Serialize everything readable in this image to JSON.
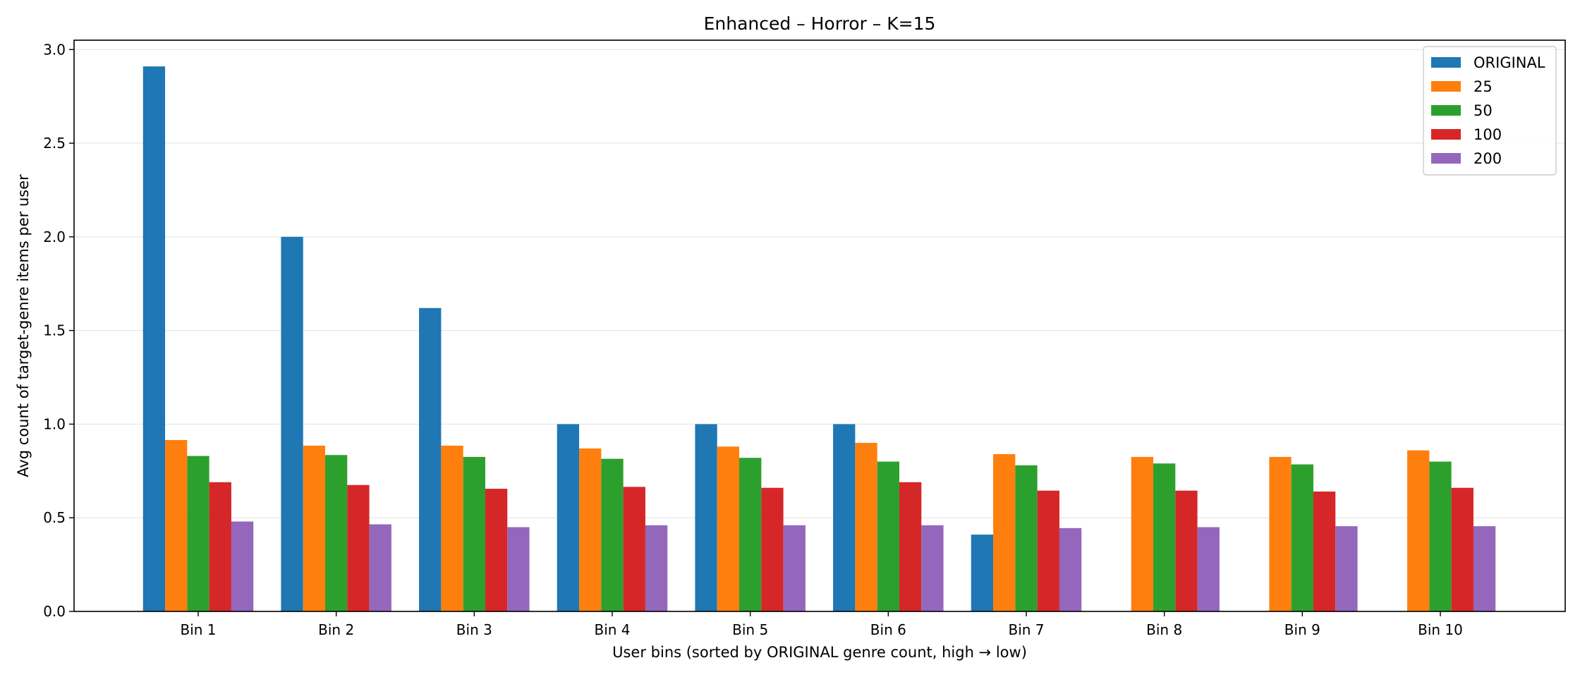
{
  "chart_data": {
    "type": "bar",
    "title": "Enhanced – Horror – K=15",
    "xlabel": "User bins (sorted by ORIGINAL genre count, high → low)",
    "ylabel": "Avg count of target-genre items per user",
    "categories": [
      "Bin 1",
      "Bin 2",
      "Bin 3",
      "Bin 4",
      "Bin 5",
      "Bin 6",
      "Bin 7",
      "Bin 8",
      "Bin 9",
      "Bin 10"
    ],
    "ylim": [
      0,
      3.05
    ],
    "yticks": [
      "0.0",
      "0.5",
      "1.0",
      "1.5",
      "2.0",
      "2.5",
      "3.0"
    ],
    "grid": "horizontal",
    "legend_position": "top-right",
    "series": [
      {
        "name": "ORIGINAL",
        "color": "#1f77b4",
        "values": [
          2.91,
          2.0,
          1.62,
          1.0,
          1.0,
          1.0,
          0.41,
          0,
          0,
          0
        ]
      },
      {
        "name": "25",
        "color": "#ff7f0e",
        "values": [
          0.915,
          0.885,
          0.885,
          0.87,
          0.88,
          0.9,
          0.84,
          0.825,
          0.825,
          0.86
        ]
      },
      {
        "name": "50",
        "color": "#2ca02c",
        "values": [
          0.83,
          0.835,
          0.825,
          0.815,
          0.82,
          0.8,
          0.78,
          0.79,
          0.785,
          0.8
        ]
      },
      {
        "name": "100",
        "color": "#d62728",
        "values": [
          0.69,
          0.675,
          0.655,
          0.665,
          0.66,
          0.69,
          0.645,
          0.645,
          0.64,
          0.66
        ]
      },
      {
        "name": "200",
        "color": "#9467bd",
        "values": [
          0.48,
          0.465,
          0.45,
          0.46,
          0.46,
          0.46,
          0.445,
          0.45,
          0.455,
          0.455
        ]
      }
    ]
  }
}
